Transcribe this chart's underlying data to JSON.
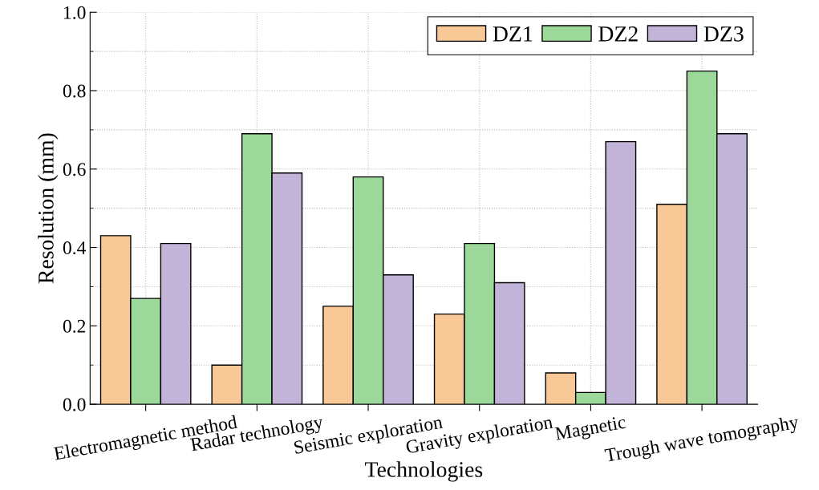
{
  "chart_data": {
    "type": "bar",
    "xlabel": "Technologies",
    "ylabel": "Resolution (mm)",
    "categories": [
      "Electromagnetic method",
      "Radar technology",
      "Seismic exploration",
      "Gravity exploration",
      "Magnetic",
      "Trough wave tomography"
    ],
    "series": [
      {
        "name": "DZ1",
        "color": "#f9c897",
        "values": [
          0.43,
          0.1,
          0.25,
          0.23,
          0.08,
          0.51
        ]
      },
      {
        "name": "DZ2",
        "color": "#9dd89b",
        "values": [
          0.27,
          0.69,
          0.58,
          0.41,
          0.03,
          0.85
        ]
      },
      {
        "name": "DZ3",
        "color": "#c2b3d8",
        "values": [
          0.41,
          0.59,
          0.33,
          0.31,
          0.67,
          0.69
        ]
      }
    ],
    "ylim": [
      0,
      1.0
    ],
    "yticks": [
      {
        "value": 0,
        "label": "0.0"
      },
      0.2,
      0.4,
      0.6,
      0.8,
      {
        "value": 1.0,
        "label": "1.0"
      }
    ],
    "grid": true,
    "legend": "top right"
  }
}
